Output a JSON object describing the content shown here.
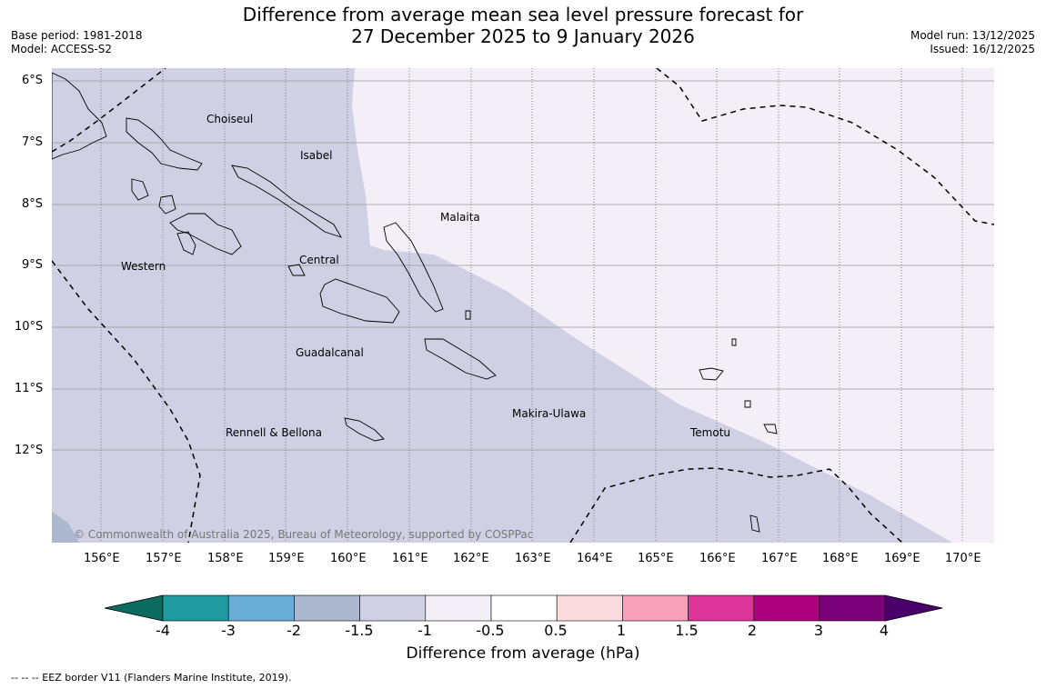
{
  "header": {
    "title_line1": "Difference from average mean sea level pressure forecast for",
    "title_line2": "27 December 2025 to 9 January 2026",
    "base_period": "Base period: 1981-2018",
    "model": "Model: ACCESS-S2",
    "model_run": "Model run: 13/12/2025",
    "issued": "Issued: 16/12/2025"
  },
  "map": {
    "lat_labels": [
      "6°S",
      "7°S",
      "8°S",
      "9°S",
      "10°S",
      "11°S",
      "12°S"
    ],
    "lon_labels": [
      "156°E",
      "157°E",
      "158°E",
      "159°E",
      "160°E",
      "161°E",
      "162°E",
      "163°E",
      "164°E",
      "165°E",
      "166°E",
      "167°E",
      "168°E",
      "169°E",
      "170°E"
    ],
    "regions": [
      "Choiseul",
      "Isabel",
      "Malaita",
      "Western",
      "Central",
      "Guadalcanal",
      "Makira-Ulawa",
      "Rennell & Bellona",
      "Temotu"
    ],
    "copyright": "© Commonwealth of Australia 2025, Bureau of Meteorology, supported by COSPPac",
    "colors": {
      "band_minus1_5_to_minus1": "#cfd0e4",
      "band_minus1_to_minus0_5": "#f4eef6",
      "band_minus2_to_minus1_5": "#aeb7d0",
      "coastline": "#000000",
      "eez": "#000000"
    }
  },
  "colorbar": {
    "ticks": [
      "-4",
      "-3",
      "-2",
      "-1.5",
      "-1",
      "-0.5",
      "0.5",
      "1",
      "1.5",
      "2",
      "3",
      "4"
    ],
    "colors": [
      "#0b6b5e",
      "#1e9aa0",
      "#6aadd5",
      "#abb8d0",
      "#cfd0e4",
      "#f4eef6",
      "#ffffff",
      "#fcdcde",
      "#f6a0bc",
      "#dc3497",
      "#ae017e",
      "#7a0177",
      "#49006a"
    ],
    "label": "Difference from average (hPa)"
  },
  "footer": {
    "eez_legend": "--  --  -- EEZ border V11 (Flanders Marine Institute, 2019)."
  }
}
